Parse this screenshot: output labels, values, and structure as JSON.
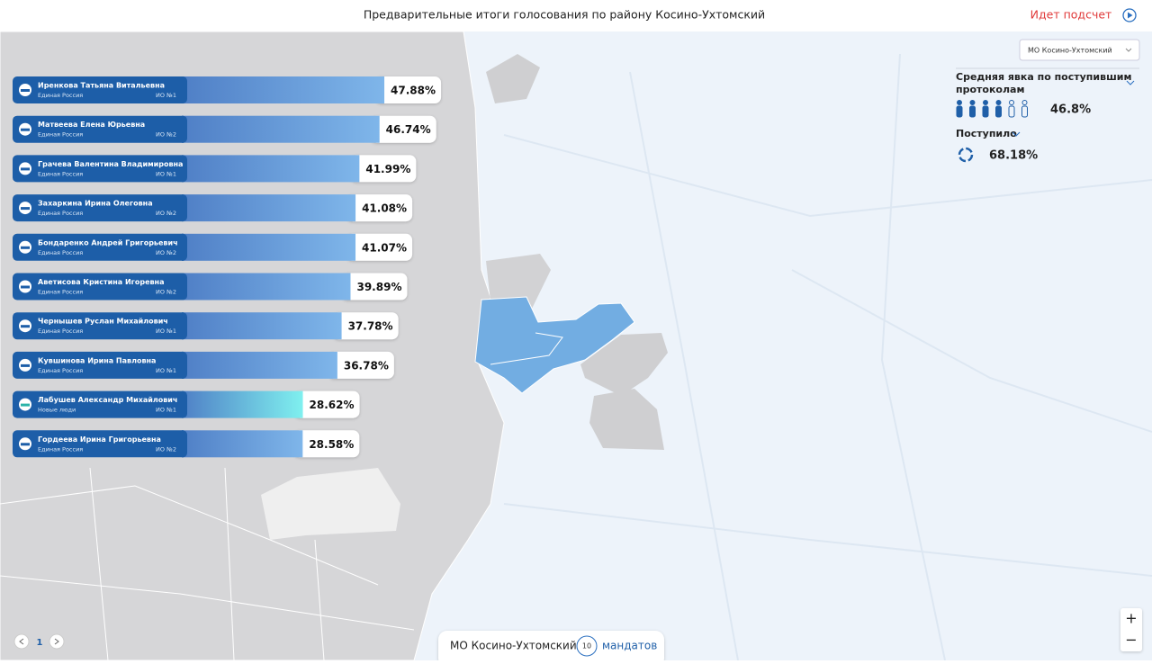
{
  "header": {
    "title": "Предварительные итоги голосования по району Косино-Ухтомский",
    "status": "Идет подсчет"
  },
  "district_select": "МО Косино-Ухтомский",
  "turnout": {
    "label_line1": "Средняя явка по поступившим",
    "label_line2": "протоколам",
    "value": "46.8%"
  },
  "received": {
    "label": "Поступило",
    "value": "68.18%"
  },
  "candidates": [
    {
      "name": "Иренкова Татьяна Витальевна",
      "party": "Единая Россия",
      "district": "ИО №1",
      "value": 47.88,
      "value_label": "47.88%",
      "color": "#7fb6ea"
    },
    {
      "name": "Матвеева Елена Юрьевна",
      "party": "Единая Россия",
      "district": "ИО №2",
      "value": 46.74,
      "value_label": "46.74%",
      "color": "#7fb6ea"
    },
    {
      "name": "Грачева Валентина Владимировна",
      "party": "Единая Россия",
      "district": "ИО №1",
      "value": 41.99,
      "value_label": "41.99%",
      "color": "#7fb6ea"
    },
    {
      "name": "Захаркина Ирина Олеговна",
      "party": "Единая Россия",
      "district": "ИО №2",
      "value": 41.08,
      "value_label": "41.08%",
      "color": "#7fb6ea"
    },
    {
      "name": "Бондаренко Андрей Григорьевич",
      "party": "Единая Россия",
      "district": "ИО №2",
      "value": 41.07,
      "value_label": "41.07%",
      "color": "#7fb6ea"
    },
    {
      "name": "Аветисова Кристина Игоревна",
      "party": "Единая Россия",
      "district": "ИО №2",
      "value": 39.89,
      "value_label": "39.89%",
      "color": "#7fb6ea"
    },
    {
      "name": "Чернышев Руслан Михайлович",
      "party": "Единая Россия",
      "district": "ИО №1",
      "value": 37.78,
      "value_label": "37.78%",
      "color": "#7fb6ea"
    },
    {
      "name": "Кувшинова Ирина Павловна",
      "party": "Единая Россия",
      "district": "ИО №1",
      "value": 36.78,
      "value_label": "36.78%",
      "color": "#7fb6ea"
    },
    {
      "name": "Лабушев Александр Михайлович",
      "party": "Новые люди",
      "district": "ИО №1",
      "value": 28.62,
      "value_label": "28.62%",
      "color": "#7ff0ef"
    },
    {
      "name": "Гордеева Ирина Григорьевна",
      "party": "Единая Россия",
      "district": "ИО №2",
      "value": 28.58,
      "value_label": "28.58%",
      "color": "#7fb6ea"
    }
  ],
  "footer": {
    "district": "МО Косино-Ухтомский",
    "mandates": 10,
    "mandates_label": "мандатов"
  },
  "pagination": {
    "page": 1
  },
  "zoom": {
    "in": "+",
    "out": "−"
  }
}
